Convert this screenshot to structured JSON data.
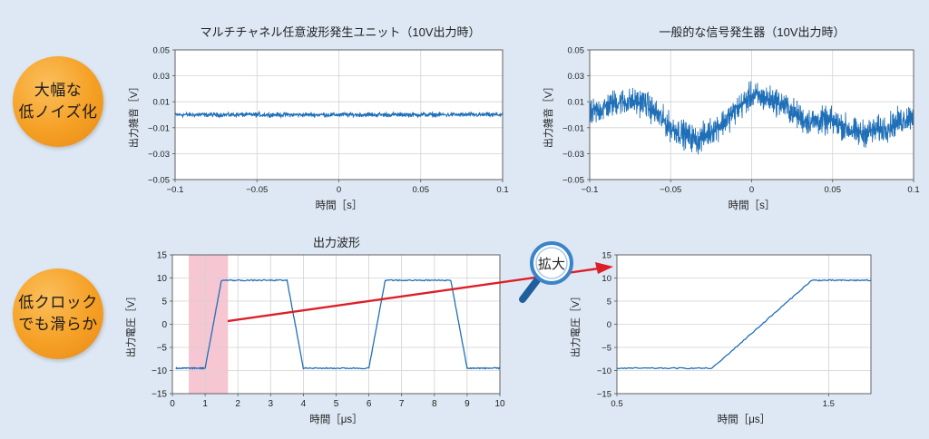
{
  "badges": {
    "noise": {
      "line1": "大幅な",
      "line2": "低ノイズ化"
    },
    "clock": {
      "line1": "低クロック",
      "line2": "でも滑らか"
    }
  },
  "zoom": {
    "label": "拡大",
    "icon": "magnifier-icon"
  },
  "colors": {
    "series": "#1f6fb8",
    "highlight": "#f7c6d3",
    "arrow": "#dd1e27",
    "background": "#dde8f4",
    "badge": "#f5a024"
  },
  "chart_data": [
    {
      "type": "line",
      "title": "マルチチャネル任意波形発生ユニット（10V出力時）",
      "xlabel": "時間［s］",
      "ylabel": "出力雑音［V］",
      "xlim": [
        -0.1,
        0.1
      ],
      "ylim": [
        -0.05,
        0.05
      ],
      "xticks": [
        -0.1,
        -0.05,
        0,
        0.05,
        0.1
      ],
      "xtick_labels": [
        "−0.1",
        "−0.05",
        "0",
        "0.05",
        "0.1"
      ],
      "yticks": [
        0.05,
        0.03,
        0.01,
        -0.01,
        -0.03,
        -0.05
      ],
      "ytick_labels": [
        "0.05",
        "0.03",
        "0.01",
        "−0.01",
        "−0.03",
        "−0.05"
      ],
      "grid": true,
      "series": [
        {
          "x": [
            -0.1,
            -0.05,
            0,
            0.05,
            0.1
          ],
          "y": [
            0.0,
            0.0,
            0.0,
            0.0,
            0.0
          ],
          "noise_pp": 0.005
        }
      ]
    },
    {
      "type": "line",
      "title": "一般的な信号発生器（10V出力時）",
      "xlabel": "時間［s］",
      "ylabel": "出力雑音［V］",
      "xlim": [
        -0.1,
        0.1
      ],
      "ylim": [
        -0.05,
        0.05
      ],
      "xticks": [
        -0.1,
        -0.05,
        0,
        0.05,
        0.1
      ],
      "xtick_labels": [
        "−0.1",
        "−0.05",
        "0",
        "0.05",
        "0.1"
      ],
      "yticks": [
        0.05,
        0.03,
        0.01,
        -0.01,
        -0.03,
        -0.05
      ],
      "ytick_labels": [
        "0.05",
        "0.03",
        "0.01",
        "−0.01",
        "−0.03",
        "−0.05"
      ],
      "grid": true,
      "series": [
        {
          "x": [
            -0.1,
            -0.0833,
            -0.0667,
            -0.05,
            -0.0333,
            -0.0167,
            0,
            0.0167,
            0.0333,
            0.05,
            0.0667,
            0.0833,
            0.1
          ],
          "y": [
            0.0,
            0.01,
            0.01,
            -0.01,
            -0.02,
            -0.005,
            0.015,
            0.01,
            -0.005,
            -0.005,
            -0.015,
            -0.01,
            0.0
          ],
          "noise_pp": 0.03
        }
      ]
    },
    {
      "type": "line",
      "title": "出力波形",
      "xlabel": "時間［μs］",
      "ylabel": "出力電圧［V］",
      "xlim": [
        0,
        10
      ],
      "ylim": [
        -15,
        15
      ],
      "xticks": [
        0,
        1,
        2,
        3,
        4,
        5,
        6,
        7,
        8,
        9,
        10
      ],
      "xtick_labels": [
        "0",
        "1",
        "2",
        "3",
        "4",
        "5",
        "6",
        "7",
        "8",
        "9",
        "10"
      ],
      "yticks": [
        15,
        10,
        5,
        0,
        -5,
        -10,
        -15
      ],
      "ytick_labels": [
        "15",
        "10",
        "5",
        "0",
        "−5",
        "−10",
        "−15"
      ],
      "grid": true,
      "highlight_x": [
        0.5,
        1.7
      ],
      "series": [
        {
          "x": [
            0.1,
            1.0,
            1.5,
            3.5,
            4.0,
            6.0,
            6.5,
            8.5,
            9.0,
            10.0
          ],
          "y": [
            -9.5,
            -9.5,
            9.5,
            9.5,
            -9.5,
            -9.5,
            9.5,
            9.5,
            -9.5,
            -9.5
          ]
        }
      ]
    },
    {
      "type": "line",
      "xlabel": "時間［μs］",
      "ylabel": "出力電圧［V］",
      "xlim": [
        0.5,
        1.7
      ],
      "ylim": [
        -15,
        15
      ],
      "xticks": [
        0.5,
        1.5
      ],
      "xtick_labels": [
        "0.5",
        "1.5"
      ],
      "yticks": [
        15,
        10,
        5,
        0,
        -5,
        -10,
        -15
      ],
      "ytick_labels": [
        "15",
        "10",
        "5",
        "0",
        "−5",
        "−10",
        "−15"
      ],
      "grid": true,
      "series": [
        {
          "x": [
            0.5,
            0.95,
            1.42,
            1.7
          ],
          "y": [
            -9.5,
            -9.5,
            9.5,
            9.5
          ]
        }
      ]
    }
  ]
}
